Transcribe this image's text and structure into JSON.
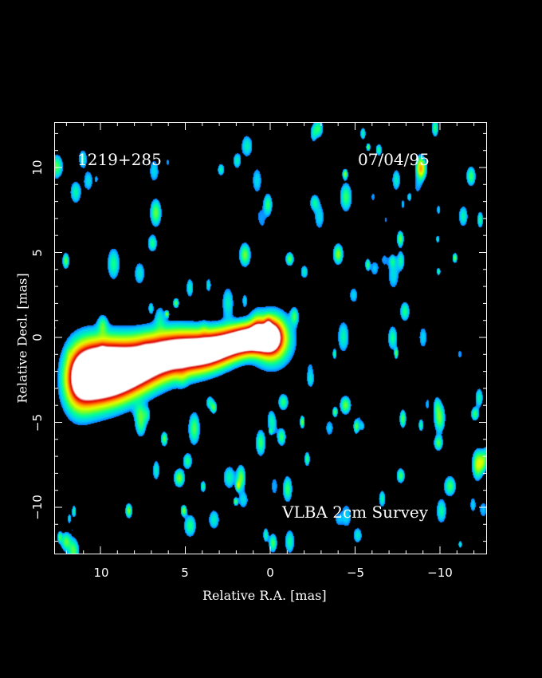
{
  "image": {
    "source_name": "1219+285",
    "date": "07/04/95",
    "survey": "VLBA 2cm Survey",
    "xlabel": "Relative R.A. [mas]",
    "ylabel": "Relative Decl. [mas]",
    "x_ticks": [
      "10",
      "5",
      "0",
      "−5",
      "−10"
    ],
    "y_ticks": [
      "10",
      "5",
      "0",
      "−5",
      "−10"
    ],
    "colormap": [
      "#000000",
      "#1a2aff",
      "#00c8ff",
      "#00ff9a",
      "#7dff20",
      "#e0ff00",
      "#ffb000",
      "#ff5000",
      "#d80000",
      "#ffffff"
    ],
    "background_color": "#000000"
  }
}
